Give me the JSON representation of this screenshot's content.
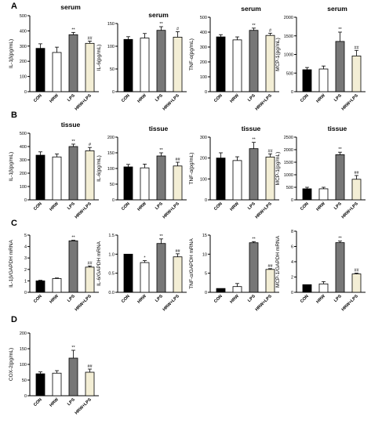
{
  "figure": {
    "row_labels": [
      "A",
      "B",
      "C",
      "D"
    ]
  },
  "style": {
    "bar_colors": [
      "#000000",
      "#ffffff",
      "#777777",
      "#f3eed5"
    ],
    "axis_color": "#000000"
  },
  "chart_data": [
    {
      "type": "bar",
      "title": "serum",
      "ylabel": "IL-1β(pg/mL)",
      "categories": [
        "CON",
        "HRW",
        "LPS",
        "HRW+LPS"
      ],
      "values": [
        285,
        258,
        375,
        318
      ],
      "errors": [
        30,
        35,
        15,
        15
      ],
      "annotations": [
        "",
        "",
        "**",
        "##"
      ],
      "ylim": [
        0,
        500
      ],
      "yticks": [
        0,
        100,
        200,
        300,
        400,
        500
      ]
    },
    {
      "type": "bar",
      "title": "serum",
      "ylabel": "IL-6(pg/mL)",
      "categories": [
        "CON",
        "HRW",
        "LPS",
        "HRW+LPS"
      ],
      "values": [
        115,
        118,
        135,
        120
      ],
      "errors": [
        6,
        10,
        8,
        12
      ],
      "annotations": [
        "",
        "",
        "**",
        "#"
      ],
      "ylim": [
        0,
        150
      ],
      "yticks": [
        0,
        50,
        100,
        150
      ]
    },
    {
      "type": "bar",
      "title": "serum",
      "ylabel": "TNF-α(pg/mL)",
      "categories": [
        "CON",
        "HRW",
        "LPS",
        "HRW+LPS"
      ],
      "values": [
        368,
        348,
        412,
        378
      ],
      "errors": [
        15,
        20,
        15,
        15
      ],
      "annotations": [
        "",
        "",
        "**",
        "#"
      ],
      "ylim": [
        0,
        500
      ],
      "yticks": [
        0,
        100,
        200,
        300,
        400,
        500
      ]
    },
    {
      "type": "bar",
      "title": "serum",
      "ylabel": "MCP-1(pg/mL)",
      "categories": [
        "CON",
        "HRW",
        "LPS",
        "HRW+LPS"
      ],
      "values": [
        590,
        610,
        1350,
        960
      ],
      "errors": [
        60,
        80,
        250,
        150
      ],
      "annotations": [
        "",
        "",
        "**",
        "##"
      ],
      "ylim": [
        0,
        2000
      ],
      "yticks": [
        0,
        500,
        1000,
        1500,
        2000
      ]
    },
    {
      "type": "bar",
      "title": "tissue",
      "ylabel": "IL-1β(pg/mL)",
      "categories": [
        "CON",
        "HRW",
        "LPS",
        "HRW+LPS"
      ],
      "values": [
        335,
        322,
        400,
        368
      ],
      "errors": [
        25,
        22,
        18,
        25
      ],
      "annotations": [
        "",
        "",
        "**",
        "#"
      ],
      "ylim": [
        0,
        500
      ],
      "yticks": [
        0,
        100,
        200,
        300,
        400,
        500
      ]
    },
    {
      "type": "bar",
      "title": "tissue",
      "ylabel": "IL-6(pg/mL)",
      "categories": [
        "CON",
        "HRW",
        "LPS",
        "HRW+LPS"
      ],
      "values": [
        105,
        102,
        140,
        108
      ],
      "errors": [
        8,
        12,
        10,
        12
      ],
      "annotations": [
        "",
        "",
        "**",
        "##"
      ],
      "ylim": [
        0,
        200
      ],
      "yticks": [
        0,
        50,
        100,
        150,
        200
      ]
    },
    {
      "type": "bar",
      "title": "tissue",
      "ylabel": "TNF-α(pg/mL)",
      "categories": [
        "CON",
        "HRW",
        "LPS",
        "HRW+LPS"
      ],
      "values": [
        200,
        188,
        245,
        205
      ],
      "errors": [
        25,
        18,
        30,
        15
      ],
      "annotations": [
        "",
        "",
        "**",
        "##"
      ],
      "ylim": [
        0,
        300
      ],
      "yticks": [
        0,
        100,
        200,
        300
      ]
    },
    {
      "type": "bar",
      "title": "tissue",
      "ylabel": "MCP-1(pg/mL)",
      "categories": [
        "CON",
        "HRW",
        "LPS",
        "HRW+LPS"
      ],
      "values": [
        440,
        440,
        1800,
        820
      ],
      "errors": [
        60,
        60,
        100,
        150
      ],
      "annotations": [
        "",
        "",
        "**",
        "##"
      ],
      "ylim": [
        0,
        2500
      ],
      "yticks": [
        0,
        500,
        1000,
        1500,
        2000,
        2500
      ]
    },
    {
      "type": "bar",
      "title": "",
      "ylabel": "IL-1β/GAPDH mRNA",
      "categories": [
        "CON",
        "HRW",
        "LPS",
        "HRW+LPS"
      ],
      "values": [
        1.0,
        1.2,
        4.5,
        2.2
      ],
      "errors": [
        0.05,
        0.05,
        0.05,
        0.1
      ],
      "annotations": [
        "",
        "",
        "**",
        "##"
      ],
      "ylim": [
        0,
        5
      ],
      "yticks": [
        0,
        1,
        2,
        3,
        4,
        5
      ]
    },
    {
      "type": "bar",
      "title": "",
      "ylabel": "IL-6/GAPDH mRNA",
      "categories": [
        "CON",
        "HRW",
        "LPS",
        "HRW+LPS"
      ],
      "values": [
        1.0,
        0.78,
        1.28,
        0.93
      ],
      "errors": [
        0,
        0.05,
        0.12,
        0.08
      ],
      "annotations": [
        "",
        "*",
        "**",
        "##"
      ],
      "ylim": [
        0,
        1.5
      ],
      "yticks": [
        0.0,
        0.5,
        1.0,
        1.5
      ]
    },
    {
      "type": "bar",
      "title": "",
      "ylabel": "TNF-α/GAPDH mRNA",
      "categories": [
        "CON",
        "HRW",
        "LPS",
        "HRW+LPS"
      ],
      "values": [
        1.0,
        1.5,
        13.0,
        6.0
      ],
      "errors": [
        0,
        0.8,
        0.3,
        0.2
      ],
      "annotations": [
        "",
        "",
        "**",
        "##"
      ],
      "ylim": [
        0,
        15
      ],
      "yticks": [
        0,
        5,
        10,
        15
      ]
    },
    {
      "type": "bar",
      "title": "",
      "ylabel": "MCP-1/GAPDH mRNA",
      "categories": [
        "CON",
        "HRW",
        "LPS",
        "HRW+LPS"
      ],
      "values": [
        1.0,
        1.1,
        6.5,
        2.4
      ],
      "errors": [
        0,
        0.3,
        0.2,
        0.1
      ],
      "annotations": [
        "",
        "",
        "**",
        "##"
      ],
      "ylim": [
        0,
        8
      ],
      "yticks": [
        0,
        2,
        4,
        6,
        8
      ]
    },
    {
      "type": "bar",
      "title": "",
      "ylabel": "COX-2(pg/mL)",
      "categories": [
        "CON",
        "HRW",
        "LPS",
        "HRW+LPS"
      ],
      "values": [
        70,
        72,
        120,
        75
      ],
      "errors": [
        6,
        8,
        25,
        10
      ],
      "annotations": [
        "",
        "",
        "**",
        "##"
      ],
      "ylim": [
        0,
        200
      ],
      "yticks": [
        0,
        50,
        100,
        150,
        200
      ]
    }
  ]
}
